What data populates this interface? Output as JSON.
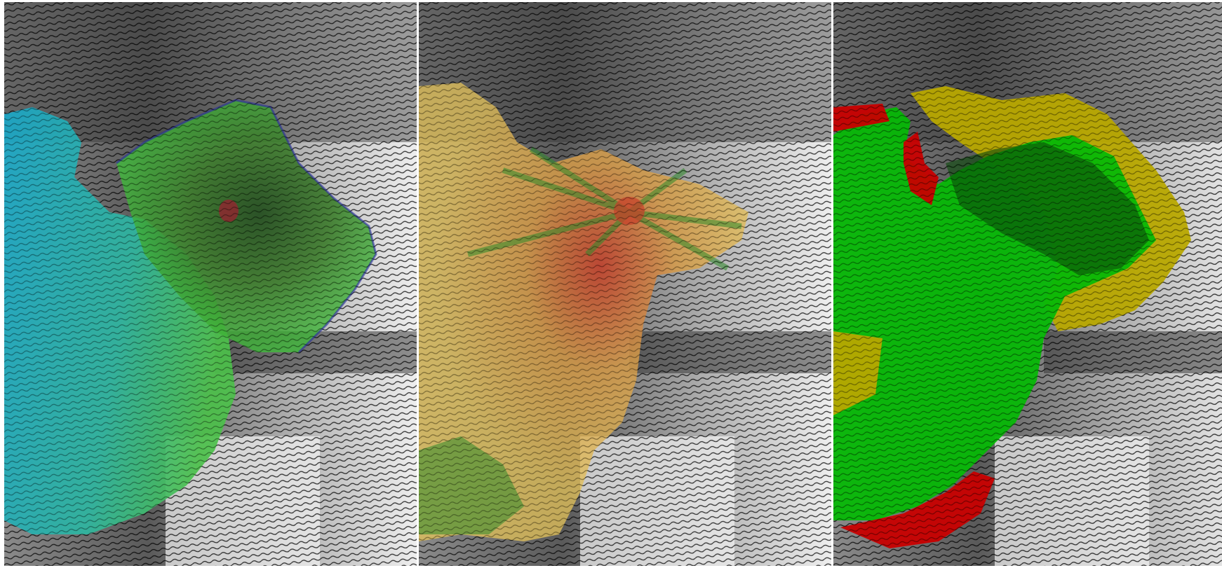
{
  "figure": {
    "panels": [
      {
        "id": "hillshade-velocity",
        "overlay": "velocity-colormap"
      },
      {
        "id": "hillshade-uncertainty",
        "overlay": "uncertainty-colormap"
      },
      {
        "id": "hillshade-classification",
        "overlay": "class-map"
      }
    ],
    "colors": {
      "velocity_low": "#1aa6c8",
      "velocity_mid": "#3fbf3a",
      "velocity_high": "#1f5a1a",
      "velocity_edge": "#2a2aa0",
      "velocity_peak": "#9a2030",
      "uncertainty_low": "#e3c25a",
      "uncertainty_mid": "#d59a48",
      "uncertainty_high": "#c8402a",
      "uncertainty_green": "#2f8a2a",
      "class_green": "#06b806",
      "class_dark_green": "#0a4a0a",
      "class_yellow": "#b8a800",
      "class_red": "#c80000",
      "terrain_dark": "#2e2e2e",
      "terrain_light": "#f4f4f4"
    }
  }
}
